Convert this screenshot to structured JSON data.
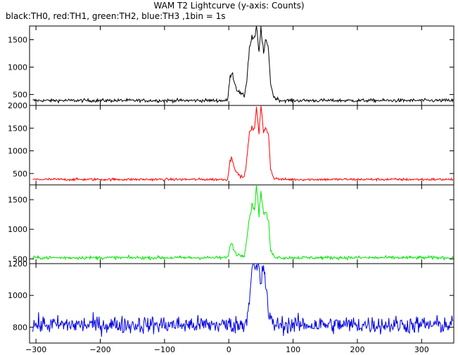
{
  "title": "WAM T2 Lightcurve (y-axis: Counts)",
  "subtitle": "black:TH0, red:TH1, green:TH2, blue:TH3 ,1bin = 1s",
  "chart_data": [
    {
      "type": "line",
      "series_name": "TH0",
      "color": "#000000",
      "xlim": [
        -310,
        350
      ],
      "ylim": [
        300,
        1750
      ],
      "yticks": [
        500,
        1000,
        1500
      ],
      "baseline": 390,
      "noise": 22,
      "burst_profile": [
        {
          "x": -2,
          "y": 390
        },
        {
          "x": 2,
          "y": 820
        },
        {
          "x": 5,
          "y": 920
        },
        {
          "x": 8,
          "y": 760
        },
        {
          "x": 12,
          "y": 600
        },
        {
          "x": 18,
          "y": 520
        },
        {
          "x": 24,
          "y": 470
        },
        {
          "x": 28,
          "y": 760
        },
        {
          "x": 32,
          "y": 1350
        },
        {
          "x": 36,
          "y": 1550
        },
        {
          "x": 40,
          "y": 1500
        },
        {
          "x": 43,
          "y": 1750
        },
        {
          "x": 47,
          "y": 1250
        },
        {
          "x": 50,
          "y": 1750
        },
        {
          "x": 54,
          "y": 1250
        },
        {
          "x": 58,
          "y": 1500
        },
        {
          "x": 62,
          "y": 1300
        },
        {
          "x": 65,
          "y": 700
        },
        {
          "x": 70,
          "y": 450
        },
        {
          "x": 80,
          "y": 395
        }
      ]
    },
    {
      "type": "line",
      "series_name": "TH1",
      "color": "#ff0000",
      "xlim": [
        -310,
        350
      ],
      "ylim": [
        250,
        2000
      ],
      "yticks": [
        500,
        1000,
        1500,
        2000
      ],
      "baseline": 370,
      "noise": 20,
      "burst_profile": [
        {
          "x": -2,
          "y": 370
        },
        {
          "x": 2,
          "y": 780
        },
        {
          "x": 5,
          "y": 850
        },
        {
          "x": 8,
          "y": 680
        },
        {
          "x": 12,
          "y": 520
        },
        {
          "x": 18,
          "y": 440
        },
        {
          "x": 24,
          "y": 420
        },
        {
          "x": 28,
          "y": 800
        },
        {
          "x": 32,
          "y": 1400
        },
        {
          "x": 36,
          "y": 1500
        },
        {
          "x": 40,
          "y": 1450
        },
        {
          "x": 43,
          "y": 2000
        },
        {
          "x": 47,
          "y": 1400
        },
        {
          "x": 50,
          "y": 2000
        },
        {
          "x": 54,
          "y": 1400
        },
        {
          "x": 58,
          "y": 1500
        },
        {
          "x": 62,
          "y": 1350
        },
        {
          "x": 65,
          "y": 600
        },
        {
          "x": 70,
          "y": 400
        },
        {
          "x": 80,
          "y": 375
        }
      ]
    },
    {
      "type": "line",
      "series_name": "TH2",
      "color": "#00e600",
      "xlim": [
        -310,
        350
      ],
      "ylim": [
        420,
        1750
      ],
      "yticks": [
        500,
        1000,
        1500
      ],
      "baseline": 520,
      "noise": 20,
      "burst_profile": [
        {
          "x": -2,
          "y": 520
        },
        {
          "x": 2,
          "y": 720
        },
        {
          "x": 5,
          "y": 760
        },
        {
          "x": 8,
          "y": 650
        },
        {
          "x": 12,
          "y": 580
        },
        {
          "x": 18,
          "y": 560
        },
        {
          "x": 24,
          "y": 560
        },
        {
          "x": 28,
          "y": 850
        },
        {
          "x": 32,
          "y": 1200
        },
        {
          "x": 36,
          "y": 1400
        },
        {
          "x": 40,
          "y": 1350
        },
        {
          "x": 43,
          "y": 1750
        },
        {
          "x": 47,
          "y": 1250
        },
        {
          "x": 50,
          "y": 1650
        },
        {
          "x": 54,
          "y": 1250
        },
        {
          "x": 58,
          "y": 1300
        },
        {
          "x": 62,
          "y": 1100
        },
        {
          "x": 65,
          "y": 650
        },
        {
          "x": 70,
          "y": 540
        },
        {
          "x": 80,
          "y": 525
        }
      ]
    },
    {
      "type": "line",
      "series_name": "TH3",
      "color": "#0000e0",
      "xlim": [
        -310,
        350
      ],
      "ylim": [
        700,
        1200
      ],
      "yticks": [
        800,
        1000,
        1200
      ],
      "xticks": [
        -300,
        -200,
        -100,
        0,
        100,
        200,
        300
      ],
      "baseline": 815,
      "noise": 40,
      "burst_profile": [
        {
          "x": 20,
          "y": 815
        },
        {
          "x": 26,
          "y": 830
        },
        {
          "x": 30,
          "y": 900
        },
        {
          "x": 34,
          "y": 1100
        },
        {
          "x": 38,
          "y": 1200
        },
        {
          "x": 42,
          "y": 1150
        },
        {
          "x": 46,
          "y": 1200
        },
        {
          "x": 50,
          "y": 1050
        },
        {
          "x": 54,
          "y": 1200
        },
        {
          "x": 58,
          "y": 1050
        },
        {
          "x": 62,
          "y": 880
        },
        {
          "x": 66,
          "y": 830
        },
        {
          "x": 75,
          "y": 815
        }
      ]
    }
  ]
}
